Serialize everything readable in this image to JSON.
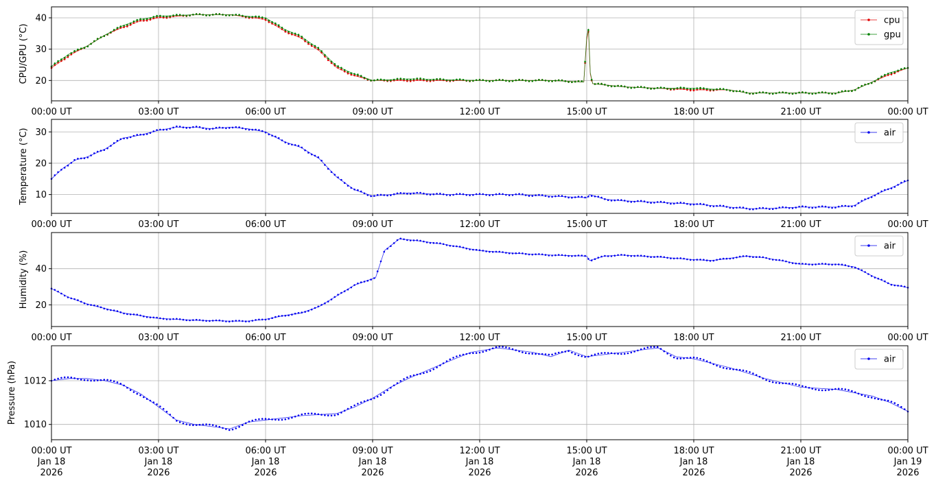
{
  "colors": {
    "cpu": "#e00000",
    "gpu": "#008000",
    "air": "#0000ee",
    "grid": "#b0b0b0",
    "axis": "#000000"
  },
  "x_ticks": [
    "00:00 UT",
    "03:00 UT",
    "06:00 UT",
    "09:00 UT",
    "12:00 UT",
    "15:00 UT",
    "18:00 UT",
    "21:00 UT",
    "00:00 UT"
  ],
  "x_date_lines": [
    "Jan 18",
    "Jan 18",
    "Jan 18",
    "Jan 18",
    "Jan 18",
    "Jan 18",
    "Jan 18",
    "Jan 18",
    "Jan 19"
  ],
  "x_year_lines": [
    "2026",
    "2026",
    "2026",
    "2026",
    "2026",
    "2026",
    "2026",
    "2026",
    "2026"
  ],
  "chart_data": [
    {
      "type": "line",
      "ylabel": "CPU/GPU (°C)",
      "ylim": [
        13.5,
        43.5
      ],
      "yticks": [
        20,
        30,
        40
      ],
      "grid": true,
      "legend_position": "top-right",
      "x_unit": "UT",
      "x_range": [
        "2026-01-18 00:00",
        "2026-01-19 00:00"
      ],
      "series": [
        {
          "name": "cpu",
          "color": "#e00000",
          "x": [
            "2026-01-18 00:00",
            "2026-01-18 00:30",
            "2026-01-18 01:00",
            "2026-01-18 01:30",
            "2026-01-18 02:00",
            "2026-01-18 02:30",
            "2026-01-18 03:00",
            "2026-01-18 04:00",
            "2026-01-18 05:00",
            "2026-01-18 06:00",
            "2026-01-18 06:30",
            "2026-01-18 07:00",
            "2026-01-18 07:30",
            "2026-01-18 08:00",
            "2026-01-18 08:30",
            "2026-01-18 09:00",
            "2026-01-18 10:00",
            "2026-01-18 12:00",
            "2026-01-18 14:00",
            "2026-01-18 14:55",
            "2026-01-18 15:00",
            "2026-01-18 15:03",
            "2026-01-18 15:06",
            "2026-01-18 15:10",
            "2026-01-18 16:00",
            "2026-01-18 17:00",
            "2026-01-18 18:00",
            "2026-01-18 19:00",
            "2026-01-18 19:30",
            "2026-01-18 20:00",
            "2026-01-18 21:00",
            "2026-01-18 22:00",
            "2026-01-18 22:30",
            "2026-01-18 23:00",
            "2026-01-18 23:30",
            "2026-01-19 00:00"
          ],
          "y": [
            24,
            28,
            31,
            34.5,
            37,
            39,
            40,
            41,
            41,
            39.5,
            36,
            33.5,
            29.5,
            24,
            21.5,
            20,
            20,
            20,
            20,
            19.5,
            33,
            36,
            22,
            19,
            18,
            17.5,
            17,
            17,
            16,
            16,
            16,
            16,
            17,
            19.5,
            22,
            24
          ]
        },
        {
          "name": "gpu",
          "color": "#008000",
          "x": [
            "2026-01-18 00:00",
            "2026-01-18 00:30",
            "2026-01-18 01:00",
            "2026-01-18 01:30",
            "2026-01-18 02:00",
            "2026-01-18 02:30",
            "2026-01-18 03:00",
            "2026-01-18 04:00",
            "2026-01-18 05:00",
            "2026-01-18 06:00",
            "2026-01-18 06:30",
            "2026-01-18 07:00",
            "2026-01-18 07:30",
            "2026-01-18 08:00",
            "2026-01-18 08:30",
            "2026-01-18 09:00",
            "2026-01-18 10:00",
            "2026-01-18 12:00",
            "2026-01-18 14:00",
            "2026-01-18 14:55",
            "2026-01-18 15:00",
            "2026-01-18 15:03",
            "2026-01-18 15:06",
            "2026-01-18 15:10",
            "2026-01-18 16:00",
            "2026-01-18 17:00",
            "2026-01-18 18:00",
            "2026-01-18 19:00",
            "2026-01-18 19:30",
            "2026-01-18 20:00",
            "2026-01-18 21:00",
            "2026-01-18 22:00",
            "2026-01-18 22:30",
            "2026-01-18 23:00",
            "2026-01-18 23:30",
            "2026-01-19 00:00"
          ],
          "y": [
            24.5,
            28.5,
            31,
            34.5,
            37.5,
            39.5,
            40.5,
            41,
            41,
            40,
            36.5,
            34,
            30,
            24.5,
            22,
            20,
            20.5,
            20,
            20,
            19.5,
            34,
            36.5,
            22.5,
            19,
            18,
            17.5,
            17.5,
            17,
            16,
            16,
            16,
            16,
            17,
            19.5,
            22.5,
            24
          ]
        }
      ]
    },
    {
      "type": "line",
      "ylabel": "Temperature (°C)",
      "ylim": [
        4,
        34
      ],
      "yticks": [
        10,
        20,
        30
      ],
      "grid": true,
      "legend_position": "top-right",
      "x_unit": "UT",
      "x_range": [
        "2026-01-18 00:00",
        "2026-01-19 00:00"
      ],
      "series": [
        {
          "name": "air",
          "color": "#0000ee",
          "x": [
            "2026-01-18 00:00",
            "2026-01-18 00:20",
            "2026-01-18 00:40",
            "2026-01-18 01:00",
            "2026-01-18 01:30",
            "2026-01-18 02:00",
            "2026-01-18 02:30",
            "2026-01-18 03:00",
            "2026-01-18 03:30",
            "2026-01-18 04:00",
            "2026-01-18 04:30",
            "2026-01-18 05:00",
            "2026-01-18 05:30",
            "2026-01-18 06:00",
            "2026-01-18 06:30",
            "2026-01-18 07:00",
            "2026-01-18 07:30",
            "2026-01-18 08:00",
            "2026-01-18 08:30",
            "2026-01-18 09:00",
            "2026-01-18 09:30",
            "2026-01-18 10:00",
            "2026-01-18 11:00",
            "2026-01-18 12:00",
            "2026-01-18 13:00",
            "2026-01-18 14:00",
            "2026-01-18 15:00",
            "2026-01-18 15:05",
            "2026-01-18 15:30",
            "2026-01-18 16:00",
            "2026-01-18 17:00",
            "2026-01-18 18:00",
            "2026-01-18 19:00",
            "2026-01-18 19:30",
            "2026-01-18 20:00",
            "2026-01-18 21:00",
            "2026-01-18 22:00",
            "2026-01-18 22:30",
            "2026-01-18 23:00",
            "2026-01-18 23:30",
            "2026-01-19 00:00"
          ],
          "y": [
            15,
            18.5,
            21,
            22,
            24.5,
            28,
            29,
            30.5,
            31.5,
            31.5,
            31,
            31.5,
            31,
            30,
            27,
            25,
            21.5,
            15.5,
            11.5,
            9.5,
            10,
            10.5,
            10,
            10,
            10,
            9.5,
            9,
            10,
            8.5,
            8,
            7.5,
            7,
            6,
            5.5,
            5.5,
            6,
            6,
            6.5,
            9.5,
            12,
            14.5
          ]
        }
      ]
    },
    {
      "type": "line",
      "ylabel": "Humidity (%)",
      "ylim": [
        8,
        60
      ],
      "yticks": [
        20,
        40
      ],
      "grid": true,
      "legend_position": "top-right",
      "x_unit": "UT",
      "x_range": [
        "2026-01-18 00:00",
        "2026-01-19 00:00"
      ],
      "series": [
        {
          "name": "air",
          "color": "#0000ee",
          "x": [
            "2026-01-18 00:00",
            "2026-01-18 00:30",
            "2026-01-18 01:00",
            "2026-01-18 01:30",
            "2026-01-18 02:00",
            "2026-01-18 02:30",
            "2026-01-18 03:00",
            "2026-01-18 03:30",
            "2026-01-18 04:00",
            "2026-01-18 05:00",
            "2026-01-18 05:30",
            "2026-01-18 06:00",
            "2026-01-18 06:30",
            "2026-01-18 07:00",
            "2026-01-18 07:30",
            "2026-01-18 08:00",
            "2026-01-18 08:30",
            "2026-01-18 09:00",
            "2026-01-18 09:05",
            "2026-01-18 09:20",
            "2026-01-18 09:45",
            "2026-01-18 10:15",
            "2026-01-18 11:00",
            "2026-01-18 12:00",
            "2026-01-18 13:00",
            "2026-01-18 14:00",
            "2026-01-18 15:00",
            "2026-01-18 15:05",
            "2026-01-18 15:30",
            "2026-01-18 16:00",
            "2026-01-18 17:00",
            "2026-01-18 18:00",
            "2026-01-18 18:30",
            "2026-01-18 19:30",
            "2026-01-18 20:00",
            "2026-01-18 21:00",
            "2026-01-18 22:00",
            "2026-01-18 22:30",
            "2026-01-18 23:00",
            "2026-01-18 23:30",
            "2026-01-19 00:00"
          ],
          "y": [
            29,
            24,
            20.5,
            18,
            15.5,
            14,
            12.5,
            12,
            11.5,
            11,
            11,
            12,
            14,
            15.5,
            19,
            25,
            31,
            34.5,
            35,
            50,
            56.5,
            55.5,
            53.5,
            50,
            48.5,
            47.5,
            47,
            44.5,
            47,
            47.5,
            46.5,
            45,
            44.5,
            47,
            46,
            42.5,
            42.5,
            41,
            36,
            31.5,
            29.5
          ]
        }
      ]
    },
    {
      "type": "scatter",
      "ylabel": "Pressure (hPa)",
      "ylim": [
        1009.3,
        1013.6
      ],
      "yticks": [
        1010,
        1012
      ],
      "grid": true,
      "legend_position": "top-right",
      "x_unit": "UT",
      "x_range": [
        "2026-01-18 00:00",
        "2026-01-19 00:00"
      ],
      "series": [
        {
          "name": "air",
          "color": "#0000ee",
          "x": [
            "2026-01-18 00:00",
            "2026-01-18 00:30",
            "2026-01-18 01:00",
            "2026-01-18 01:30",
            "2026-01-18 02:00",
            "2026-01-18 02:30",
            "2026-01-18 03:00",
            "2026-01-18 03:30",
            "2026-01-18 04:00",
            "2026-01-18 04:30",
            "2026-01-18 05:00",
            "2026-01-18 05:30",
            "2026-01-18 06:00",
            "2026-01-18 07:00",
            "2026-01-18 08:00",
            "2026-01-18 08:30",
            "2026-01-18 09:00",
            "2026-01-18 09:30",
            "2026-01-18 10:00",
            "2026-01-18 11:00",
            "2026-01-18 11:45",
            "2026-01-18 12:30",
            "2026-01-18 13:30",
            "2026-01-18 14:00",
            "2026-01-18 14:30",
            "2026-01-18 15:00",
            "2026-01-18 16:00",
            "2026-01-18 16:30",
            "2026-01-18 17:00",
            "2026-01-18 17:30",
            "2026-01-18 18:00",
            "2026-01-18 18:30",
            "2026-01-18 19:00",
            "2026-01-18 20:00",
            "2026-01-18 21:00",
            "2026-01-18 22:00",
            "2026-01-18 23:00",
            "2026-01-18 23:30",
            "2026-01-19 00:00"
          ],
          "y": [
            1012,
            1012.1,
            1012.1,
            1012,
            1011.8,
            1011.4,
            1010.8,
            1010.2,
            1010,
            1009.9,
            1009.8,
            1010.1,
            1010.2,
            1010.4,
            1010.5,
            1010.8,
            1011.2,
            1011.7,
            1012.1,
            1012.8,
            1013.3,
            1013.5,
            1013.3,
            1013.1,
            1013.4,
            1013.1,
            1013.3,
            1013.4,
            1013.5,
            1013.1,
            1013,
            1012.8,
            1012.6,
            1012.1,
            1011.7,
            1011.6,
            1011.3,
            1011,
            1010.6
          ]
        }
      ]
    }
  ]
}
